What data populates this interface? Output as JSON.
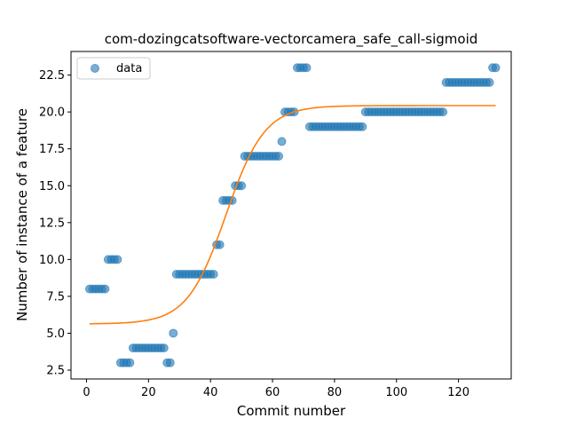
{
  "chart_data": {
    "type": "scatter",
    "title": "com-dozingcatsoftware-vectorcamera_safe_call-sigmoid",
    "xlabel": "Commit number",
    "ylabel": "Number of instance of a feature",
    "xlim": [
      -5,
      137
    ],
    "ylim": [
      1.9,
      24.1
    ],
    "xticks": [
      0,
      20,
      40,
      60,
      80,
      100,
      120
    ],
    "xtick_labels": [
      "0",
      "20",
      "40",
      "60",
      "80",
      "100",
      "120"
    ],
    "yticks": [
      2.5,
      5.0,
      7.5,
      10.0,
      12.5,
      15.0,
      17.5,
      20.0,
      22.5
    ],
    "ytick_labels": [
      "2.5",
      "5.0",
      "7.5",
      "10.0",
      "12.5",
      "15.0",
      "17.5",
      "20.0",
      "22.5"
    ],
    "grid": false,
    "legend": {
      "position": "top-left",
      "entries": [
        "data"
      ]
    },
    "series": [
      {
        "name": "data",
        "kind": "scatter",
        "color": "#1f77b4",
        "x": [
          1,
          2,
          3,
          4,
          5,
          6,
          7,
          8,
          9,
          10,
          11,
          12,
          13,
          14,
          15,
          16,
          17,
          18,
          19,
          20,
          21,
          22,
          23,
          24,
          25,
          26,
          27,
          28,
          29,
          30,
          31,
          32,
          33,
          34,
          35,
          36,
          37,
          38,
          39,
          40,
          41,
          42,
          43,
          44,
          45,
          46,
          47,
          48,
          49,
          50,
          51,
          52,
          53,
          54,
          55,
          56,
          57,
          58,
          59,
          60,
          61,
          62,
          63,
          64,
          65,
          66,
          67,
          68,
          69,
          70,
          71,
          72,
          73,
          74,
          75,
          76,
          77,
          78,
          79,
          80,
          81,
          82,
          83,
          84,
          85,
          86,
          87,
          88,
          89,
          90,
          91,
          92,
          93,
          94,
          95,
          96,
          97,
          98,
          99,
          100,
          101,
          102,
          103,
          104,
          105,
          106,
          107,
          108,
          109,
          110,
          111,
          112,
          113,
          114,
          115,
          116,
          117,
          118,
          119,
          120,
          121,
          122,
          123,
          124,
          125,
          126,
          127,
          128,
          129,
          130,
          131,
          132
        ],
        "y": [
          8,
          8,
          8,
          8,
          8,
          8,
          10,
          10,
          10,
          10,
          3,
          3,
          3,
          3,
          4,
          4,
          4,
          4,
          4,
          4,
          4,
          4,
          4,
          4,
          4,
          3,
          3,
          5,
          9,
          9,
          9,
          9,
          9,
          9,
          9,
          9,
          9,
          9,
          9,
          9,
          9,
          11,
          11,
          14,
          14,
          14,
          14,
          15,
          15,
          15,
          17,
          17,
          17,
          17,
          17,
          17,
          17,
          17,
          17,
          17,
          17,
          17,
          18,
          20,
          20,
          20,
          20,
          23,
          23,
          23,
          23,
          19,
          19,
          19,
          19,
          19,
          19,
          19,
          19,
          19,
          19,
          19,
          19,
          19,
          19,
          19,
          19,
          19,
          19,
          20,
          20,
          20,
          20,
          20,
          20,
          20,
          20,
          20,
          20,
          20,
          20,
          20,
          20,
          20,
          20,
          20,
          20,
          20,
          20,
          20,
          20,
          20,
          20,
          20,
          20,
          22,
          22,
          22,
          22,
          22,
          22,
          22,
          22,
          22,
          22,
          22,
          22,
          22,
          22,
          22,
          23,
          23
        ]
      },
      {
        "kind": "line",
        "color": "#ff7f0e",
        "model": "sigmoid",
        "params": {
          "low": 5.63,
          "high": 20.43,
          "midpoint": 45,
          "rate": 0.16
        },
        "x_range": [
          1,
          132
        ]
      }
    ]
  }
}
